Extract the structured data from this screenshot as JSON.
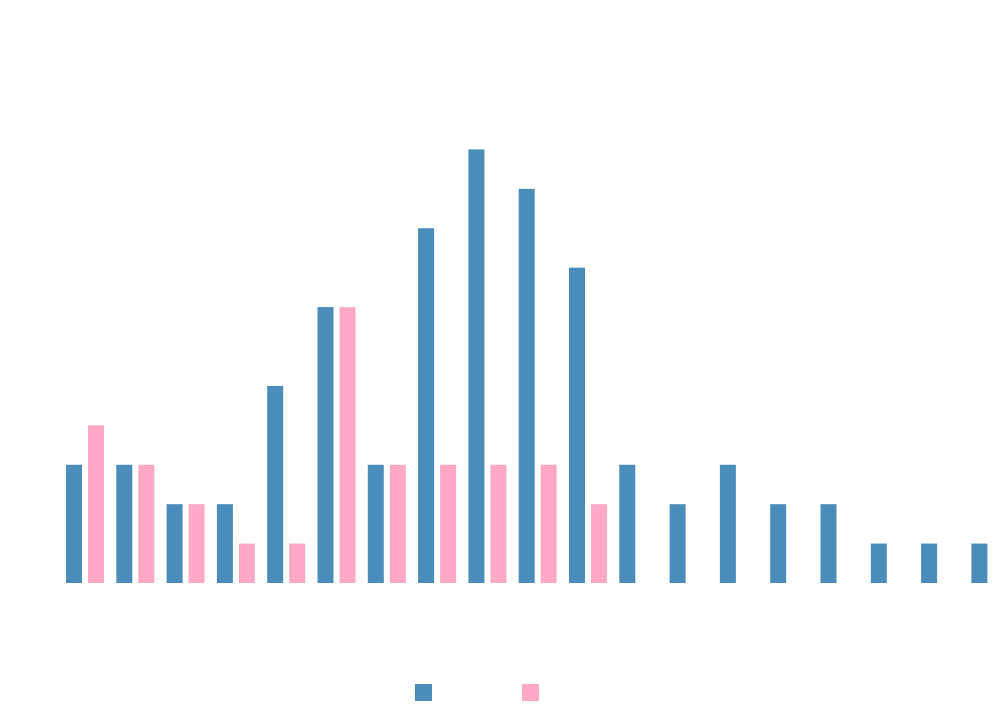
{
  "chart_data": {
    "type": "bar",
    "categories": [
      null,
      null,
      null,
      null,
      null,
      null,
      null,
      null,
      null,
      null,
      null,
      null,
      null,
      null,
      null,
      null,
      null,
      null,
      null
    ],
    "series": [
      {
        "color": "#4a8dbb",
        "values": [
          3,
          3,
          2,
          2,
          5,
          7,
          3,
          9,
          11,
          10,
          8,
          3,
          2,
          3,
          2,
          2,
          1,
          1,
          1
        ]
      },
      {
        "color": "#ffa8c8",
        "values": [
          4,
          3,
          2,
          1,
          1,
          7,
          3,
          3,
          3,
          3,
          2,
          null,
          null,
          null,
          null,
          null,
          null,
          null,
          null
        ]
      }
    ],
    "ylim": [
      0,
      12
    ]
  }
}
